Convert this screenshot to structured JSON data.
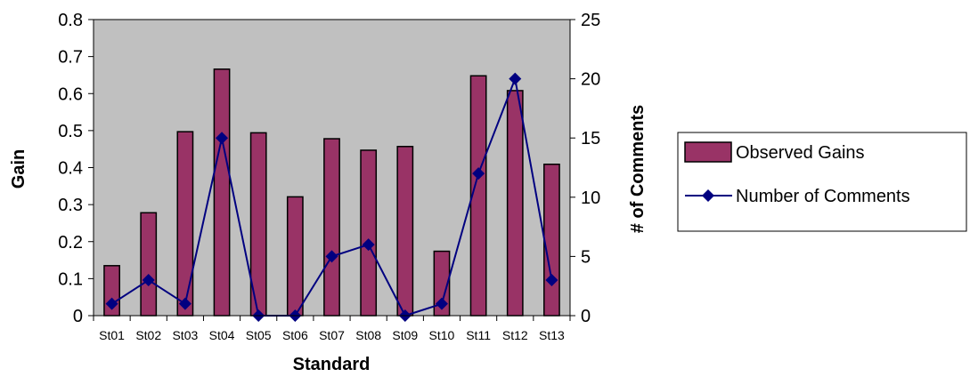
{
  "chart_data": {
    "type": "bar",
    "categories": [
      "St01",
      "St02",
      "St03",
      "St04",
      "St05",
      "St06",
      "St07",
      "St08",
      "St09",
      "St10",
      "St11",
      "St12",
      "St13"
    ],
    "series": [
      {
        "name": "Observed Gains",
        "type": "bar",
        "axis": "left",
        "values": [
          0.135,
          0.278,
          0.497,
          0.666,
          0.494,
          0.321,
          0.478,
          0.447,
          0.457,
          0.174,
          0.648,
          0.608,
          0.409
        ]
      },
      {
        "name": "Number of Comments",
        "type": "line",
        "marker": "diamond",
        "axis": "right",
        "values": [
          1,
          3,
          1,
          15,
          0,
          0,
          5,
          6,
          0,
          1,
          12,
          20,
          3
        ]
      }
    ],
    "xlabel": "Standard",
    "ylabel": "Gain",
    "y2label": "# of Comments",
    "ylim": [
      0,
      0.8
    ],
    "y2lim": [
      0,
      25
    ],
    "yticks": [
      "0",
      "0.1",
      "0.2",
      "0.3",
      "0.4",
      "0.5",
      "0.6",
      "0.7",
      "0.8"
    ],
    "y2ticks": [
      "0",
      "5",
      "10",
      "15",
      "20",
      "25"
    ],
    "grid": false,
    "legend_position": "right",
    "colors": {
      "plot_background": "#c0c0c0",
      "bar_fill": "#993366",
      "bar_stroke": "#000000",
      "line": "#000080"
    }
  }
}
